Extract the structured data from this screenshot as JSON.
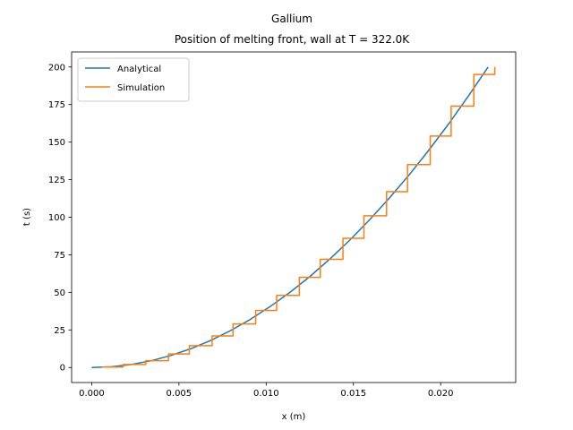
{
  "chart_data": {
    "type": "line",
    "title": "Gallium",
    "subtitle": "Position of melting front, wall at T = 322.0K",
    "xlabel": "x (m)",
    "ylabel": "t (s)",
    "xlim": [
      -0.00115,
      0.0243
    ],
    "ylim": [
      -10,
      210
    ],
    "xticks": [
      0.0,
      0.005,
      0.01,
      0.015,
      0.02
    ],
    "xtick_labels": [
      "0.000",
      "0.005",
      "0.010",
      "0.015",
      "0.020"
    ],
    "yticks": [
      0,
      25,
      50,
      75,
      100,
      125,
      150,
      175,
      200
    ],
    "ytick_labels": [
      "0",
      "25",
      "50",
      "75",
      "100",
      "125",
      "150",
      "175",
      "200"
    ],
    "legend_position": "top-left",
    "grid": false,
    "series": [
      {
        "name": "Analytical",
        "color": "#1f77b4",
        "x": [
          0.0,
          0.00114,
          0.00227,
          0.00341,
          0.00454,
          0.00568,
          0.00682,
          0.00795,
          0.00909,
          0.01022,
          0.01136,
          0.0125,
          0.01363,
          0.01477,
          0.0159,
          0.01704,
          0.01818,
          0.01931,
          0.02045,
          0.02158,
          0.02272
        ],
        "y": [
          0,
          0.5,
          2,
          4.5,
          8,
          12.5,
          18,
          24.5,
          32,
          40.5,
          50,
          60.5,
          72,
          84.5,
          98,
          112.5,
          128,
          144.5,
          162,
          180.5,
          200
        ]
      },
      {
        "name": "Simulation",
        "color": "#ff7f0e",
        "x": [
          0.0006,
          0.0018,
          0.0018,
          0.0031,
          0.0031,
          0.0044,
          0.0044,
          0.0056,
          0.0056,
          0.0069,
          0.0069,
          0.0081,
          0.0081,
          0.0094,
          0.0094,
          0.0106,
          0.0106,
          0.0119,
          0.0119,
          0.0131,
          0.0131,
          0.0144,
          0.0144,
          0.0156,
          0.0156,
          0.0169,
          0.0169,
          0.0181,
          0.0181,
          0.0194,
          0.0194,
          0.0206,
          0.0206,
          0.0219,
          0.0219,
          0.0231,
          0.0231
        ],
        "y": [
          0.3,
          0.3,
          2,
          2,
          4.5,
          4.5,
          9,
          9,
          14.5,
          14.5,
          21,
          21,
          29,
          29,
          38,
          38,
          48,
          48,
          60,
          60,
          72,
          72,
          86,
          86,
          101,
          101,
          117,
          117,
          135,
          135,
          154,
          154,
          174,
          174,
          195,
          195,
          200
        ]
      }
    ]
  }
}
